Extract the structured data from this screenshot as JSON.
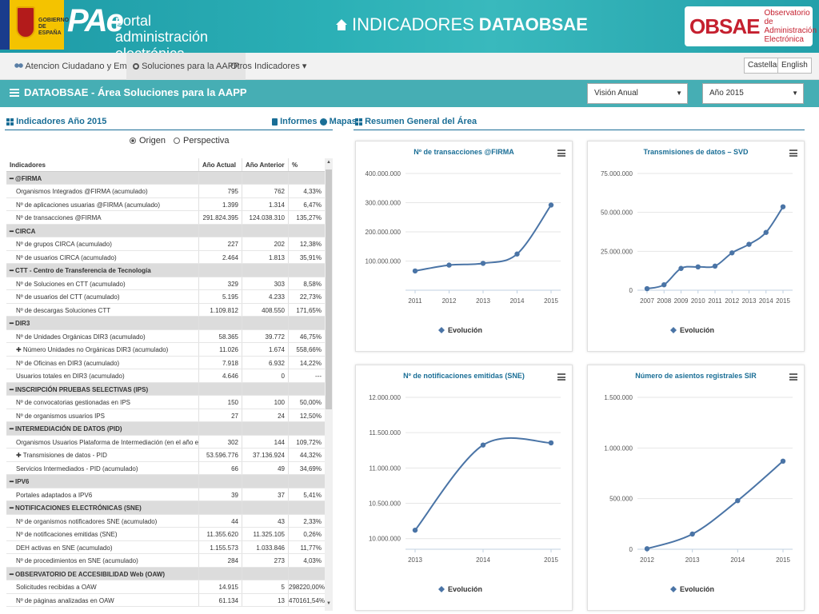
{
  "header": {
    "gov_text": "GOBIERNO DE ESPAÑA",
    "pae_big": "PAe",
    "pae_portal": "portal",
    "pae_admin": "administración electrónica",
    "title_light": "INDICADORES ",
    "title_bold": "DATAOBSAE",
    "obsae_logo": "OBSAE",
    "obsae_sub": "Observatorio de Administración Electrónica"
  },
  "nav": {
    "items": [
      {
        "label": "Atencion Ciudadano y Empresa",
        "icon": "users-icon"
      },
      {
        "label": "Soluciones para la AAPP",
        "icon": "map-pin-icon"
      },
      {
        "label": "Otros Indicadores ▾",
        "icon": ""
      }
    ],
    "lang": [
      "Castellano",
      "English"
    ]
  },
  "area": {
    "title": "DATAOBSAE - Área Soluciones para la AAPP",
    "select_view": "Visión Anual",
    "select_year": "Año 2015"
  },
  "left": {
    "title": "Indicadores Año 2015",
    "links": {
      "informes": "Informes",
      "mapas": "Mapas"
    },
    "radio_origen": "Origen",
    "radio_perspectiva": "Perspectiva",
    "columns": [
      "Indicadores",
      "Año Actual",
      "Año Anterior",
      "%"
    ],
    "rows": [
      {
        "type": "grp",
        "label": "━ @FIRMA"
      },
      {
        "type": "row",
        "label": "Organismos Integrados @FIRMA (acumulado)",
        "a": "795",
        "b": "762",
        "p": "4,33%"
      },
      {
        "type": "row",
        "label": "Nº de aplicaciones usuarias @FIRMA (acumulado)",
        "a": "1.399",
        "b": "1.314",
        "p": "6,47%"
      },
      {
        "type": "row",
        "label": "Nº de transacciones @FIRMA",
        "a": "291.824.395",
        "b": "124.038.310",
        "p": "135,27%"
      },
      {
        "type": "grp",
        "label": "━ CIRCA"
      },
      {
        "type": "row",
        "label": "Nº de grupos CIRCA (acumulado)",
        "a": "227",
        "b": "202",
        "p": "12,38%"
      },
      {
        "type": "row",
        "label": "Nº de usuarios CIRCA (acumulado)",
        "a": "2.464",
        "b": "1.813",
        "p": "35,91%"
      },
      {
        "type": "grp",
        "label": "━ CTT - Centro de Transferencia de Tecnología"
      },
      {
        "type": "row",
        "label": "Nº de Soluciones en CTT (acumulado)",
        "a": "329",
        "b": "303",
        "p": "8,58%"
      },
      {
        "type": "row",
        "label": "Nº de usuarios del CTT (acumulado)",
        "a": "5.195",
        "b": "4.233",
        "p": "22,73%"
      },
      {
        "type": "row",
        "label": "Nº de descargas Soluciones CTT",
        "a": "1.109.812",
        "b": "408.550",
        "p": "171,65%"
      },
      {
        "type": "grp",
        "label": "━ DIR3"
      },
      {
        "type": "row",
        "label": "Nº de Unidades Orgánicas DIR3 (acumulado)",
        "a": "58.365",
        "b": "39.772",
        "p": "46,75%"
      },
      {
        "type": "row",
        "label": "✚ Número Unidades no Orgánicas DIR3 (acumulado)",
        "a": "11.026",
        "b": "1.674",
        "p": "558,66%"
      },
      {
        "type": "row",
        "label": "Nº de Oficinas en DIR3 (acumulado)",
        "a": "7.918",
        "b": "6.932",
        "p": "14,22%"
      },
      {
        "type": "row",
        "label": "Usuarios totales en DIR3 (acumulado)",
        "a": "4.646",
        "b": "0",
        "p": "---"
      },
      {
        "type": "grp",
        "label": "━ INSCRIPCIÓN PRUEBAS SELECTIVAS (IPS)"
      },
      {
        "type": "row",
        "label": "Nº de convocatorias gestionadas en IPS",
        "a": "150",
        "b": "100",
        "p": "50,00%"
      },
      {
        "type": "row",
        "label": "Nº de organismos usuarios IPS",
        "a": "27",
        "b": "24",
        "p": "12,50%"
      },
      {
        "type": "grp",
        "label": "━ INTERMEDIACIÓN DE DATOS (PID)"
      },
      {
        "type": "row",
        "label": "Organismos Usuarios Plataforma de Intermediación (en el año en curso)",
        "a": "302",
        "b": "144",
        "p": "109,72%"
      },
      {
        "type": "row",
        "label": "✚ Transmisiones de datos - PID",
        "a": "53.596.776",
        "b": "37.136.924",
        "p": "44,32%"
      },
      {
        "type": "row",
        "label": "Servicios Intermediados - PID (acumulado)",
        "a": "66",
        "b": "49",
        "p": "34,69%"
      },
      {
        "type": "grp",
        "label": "━ IPV6"
      },
      {
        "type": "row",
        "label": "Portales adaptados a IPV6",
        "a": "39",
        "b": "37",
        "p": "5,41%"
      },
      {
        "type": "grp",
        "label": "━ NOTIFICACIONES ELECTRÓNICAS (SNE)"
      },
      {
        "type": "row",
        "label": "Nº de organismos notificadores SNE (acumulado)",
        "a": "44",
        "b": "43",
        "p": "2,33%"
      },
      {
        "type": "row",
        "label": "Nº de notificaciones emitidas (SNE)",
        "a": "11.355.620",
        "b": "11.325.105",
        "p": "0,26%"
      },
      {
        "type": "row",
        "label": "DEH activas en SNE (acumulado)",
        "a": "1.155.573",
        "b": "1.033.846",
        "p": "11,77%"
      },
      {
        "type": "row",
        "label": "Nº de procedimientos en SNE (acumulado)",
        "a": "284",
        "b": "273",
        "p": "4,03%"
      },
      {
        "type": "grp",
        "label": "━ OBSERVATORIO DE ACCESIBILIDAD Web (OAW)"
      },
      {
        "type": "row",
        "label": "Solicitudes recibidas a OAW",
        "a": "14.915",
        "b": "5",
        "p": "298220,00%"
      },
      {
        "type": "row",
        "label": "Nº de páginas analizadas en OAW",
        "a": "61.134",
        "b": "13",
        "p": "470161,54%"
      }
    ]
  },
  "right": {
    "title": "Resumen General del Área"
  },
  "chart_data": [
    {
      "type": "line",
      "title": "Nº de transacciones @FIRMA",
      "x": [
        "2011",
        "2012",
        "2013",
        "2014",
        "2015"
      ],
      "series": [
        {
          "name": "Evolución",
          "values": [
            66000000,
            86000000,
            92000000,
            124038310,
            291824395
          ]
        }
      ],
      "yticks": [
        "100.000.000",
        "200.000.000",
        "300.000.000",
        "400.000.000"
      ],
      "ylim": [
        0,
        400000000
      ],
      "grid": true,
      "legend": "bottom"
    },
    {
      "type": "line",
      "title": "Transmisiones de datos – SVD",
      "x": [
        "2007",
        "2008",
        "2009",
        "2010",
        "2011",
        "2012",
        "2013",
        "2014",
        "2015"
      ],
      "series": [
        {
          "name": "Evolución",
          "values": [
            1000000,
            3500000,
            14000000,
            15000000,
            15500000,
            24000000,
            29500000,
            37136924,
            53596776
          ]
        }
      ],
      "yticks": [
        "0",
        "25.000.000",
        "50.000.000",
        "75.000.000"
      ],
      "ylim": [
        0,
        75000000
      ],
      "grid": true,
      "legend": "bottom"
    },
    {
      "type": "line",
      "title": "Nº de notificaciones emitidas (SNE)",
      "x": [
        "2013",
        "2014",
        "2015"
      ],
      "series": [
        {
          "name": "Evolución",
          "values": [
            10120000,
            11325105,
            11355620
          ]
        }
      ],
      "yticks": [
        "10.000.000",
        "10.500.000",
        "11.000.000",
        "11.500.000",
        "12.000.000"
      ],
      "ylim": [
        9850000,
        12000000
      ],
      "grid": true,
      "legend": "bottom"
    },
    {
      "type": "line",
      "title": "Número de asientos registrales SIR",
      "x": [
        "2012",
        "2013",
        "2014",
        "2015"
      ],
      "series": [
        {
          "name": "Evolución",
          "values": [
            5000,
            150000,
            480000,
            870000
          ]
        }
      ],
      "yticks": [
        "0",
        "500.000",
        "1.000.000",
        "1.500.000"
      ],
      "ylim": [
        0,
        1500000
      ],
      "grid": true,
      "legend": "bottom"
    }
  ]
}
